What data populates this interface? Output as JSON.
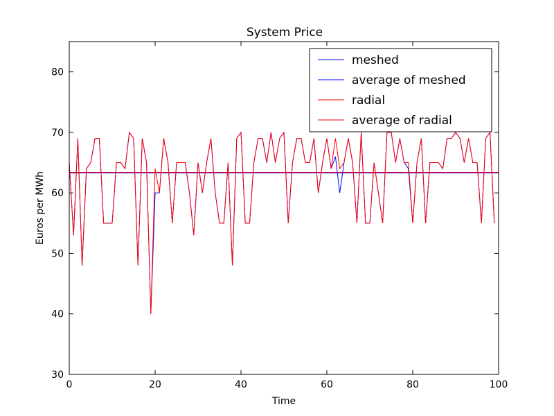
{
  "chart_data": {
    "type": "line",
    "title": "System Price",
    "xlabel": "Time",
    "ylabel": "Euros per MWh",
    "xlim": [
      0,
      100
    ],
    "ylim": [
      30,
      85
    ],
    "xticks": [
      0,
      20,
      40,
      60,
      80,
      100
    ],
    "yticks": [
      30,
      40,
      50,
      60,
      70,
      80
    ],
    "grid": false,
    "legend_position": "top-right",
    "series": [
      {
        "name": "meshed",
        "color": "#0000ff",
        "x": [
          0,
          1,
          2,
          3,
          4,
          5,
          6,
          7,
          8,
          9,
          10,
          11,
          12,
          13,
          14,
          15,
          16,
          17,
          18,
          19,
          20,
          21,
          22,
          23,
          24,
          25,
          26,
          27,
          28,
          29,
          30,
          31,
          32,
          33,
          34,
          35,
          36,
          37,
          38,
          39,
          40,
          41,
          42,
          43,
          44,
          45,
          46,
          47,
          48,
          49,
          50,
          51,
          52,
          53,
          54,
          55,
          56,
          57,
          58,
          59,
          60,
          61,
          62,
          63,
          64,
          65,
          66,
          67,
          68,
          69,
          70,
          71,
          72,
          73,
          74,
          75,
          76,
          77,
          78,
          79,
          80,
          81,
          82,
          83,
          84,
          85,
          86,
          87,
          88,
          89,
          90,
          91,
          92,
          93,
          94,
          95,
          96,
          97,
          98,
          99
        ],
        "y": [
          65,
          53,
          69,
          48,
          64,
          65,
          69,
          69,
          55,
          55,
          55,
          65,
          65,
          64,
          70,
          69,
          48,
          69,
          65,
          40,
          60,
          60,
          69,
          65,
          55,
          65,
          65,
          65,
          60,
          53,
          65,
          60,
          65,
          69,
          60,
          55,
          55,
          65,
          48,
          69,
          70,
          55,
          55,
          65,
          69,
          69,
          65,
          70,
          65,
          69,
          70,
          55,
          65,
          69,
          69,
          65,
          65,
          69,
          60,
          65,
          69,
          64,
          66,
          60,
          65,
          69,
          65,
          55,
          70,
          55,
          55,
          65,
          60,
          55,
          70,
          70,
          65,
          69,
          65,
          64,
          55,
          65,
          69,
          55,
          65,
          65,
          65,
          64,
          69,
          69,
          70,
          69,
          65,
          69,
          65,
          65,
          55,
          69,
          70,
          55
        ]
      },
      {
        "name": "average of meshed",
        "color": "#0000ff",
        "x": [
          0,
          100
        ],
        "y": [
          63.3,
          63.3
        ]
      },
      {
        "name": "radial",
        "color": "#ff0000",
        "x": [
          0,
          1,
          2,
          3,
          4,
          5,
          6,
          7,
          8,
          9,
          10,
          11,
          12,
          13,
          14,
          15,
          16,
          17,
          18,
          19,
          20,
          21,
          22,
          23,
          24,
          25,
          26,
          27,
          28,
          29,
          30,
          31,
          32,
          33,
          34,
          35,
          36,
          37,
          38,
          39,
          40,
          41,
          42,
          43,
          44,
          45,
          46,
          47,
          48,
          49,
          50,
          51,
          52,
          53,
          54,
          55,
          56,
          57,
          58,
          59,
          60,
          61,
          62,
          63,
          64,
          65,
          66,
          67,
          68,
          69,
          70,
          71,
          72,
          73,
          74,
          75,
          76,
          77,
          78,
          79,
          80,
          81,
          82,
          83,
          84,
          85,
          86,
          87,
          88,
          89,
          90,
          91,
          92,
          93,
          94,
          95,
          96,
          97,
          98,
          99
        ],
        "y": [
          65,
          53,
          69,
          48,
          64,
          65,
          69,
          69,
          55,
          55,
          55,
          65,
          65,
          64,
          70,
          69,
          48,
          69,
          65,
          40,
          64,
          60,
          69,
          65,
          55,
          65,
          65,
          65,
          60,
          53,
          65,
          60,
          65,
          69,
          60,
          55,
          55,
          65,
          48,
          69,
          70,
          55,
          55,
          65,
          69,
          69,
          65,
          70,
          65,
          69,
          70,
          55,
          65,
          69,
          69,
          65,
          65,
          69,
          60,
          65,
          69,
          64,
          69,
          64,
          65,
          69,
          65,
          55,
          70,
          55,
          55,
          65,
          60,
          55,
          70,
          70,
          65,
          69,
          65,
          65,
          55,
          65,
          69,
          55,
          65,
          65,
          65,
          64,
          69,
          69,
          70,
          69,
          65,
          69,
          65,
          65,
          55,
          69,
          70,
          55
        ]
      },
      {
        "name": "average of radial",
        "color": "#ff0000",
        "x": [
          0,
          100
        ],
        "y": [
          63.4,
          63.4
        ]
      }
    ]
  }
}
